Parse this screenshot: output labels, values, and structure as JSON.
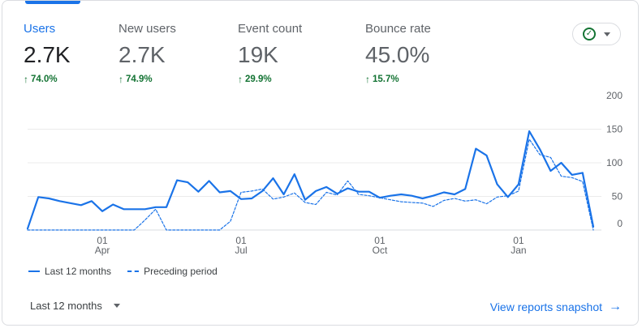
{
  "metrics": [
    {
      "label": "Users",
      "value": "2.7K",
      "delta": "74.0%",
      "active": true
    },
    {
      "label": "New users",
      "value": "2.7K",
      "delta": "74.9%",
      "active": false
    },
    {
      "label": "Event count",
      "value": "19K",
      "delta": "29.9%",
      "active": false
    },
    {
      "label": "Bounce rate",
      "value": "45.0%",
      "delta": "15.7%",
      "active": false
    }
  ],
  "status_button": {
    "icon": "check-circle-icon",
    "menu_icon": "caret-down-icon"
  },
  "legend": {
    "current": "Last 12 months",
    "previous": "Preceding period"
  },
  "footer": {
    "range_label": "Last 12 months",
    "link_label": "View reports snapshot"
  },
  "colors": {
    "accent": "#1a73e8",
    "positive": "#137333"
  },
  "chart_data": {
    "type": "line",
    "y_ticks": [
      "200",
      "150",
      "100",
      "50",
      "0"
    ],
    "ylim": [
      0,
      200
    ],
    "x_tick_labels": [
      {
        "day": "01",
        "month": "Apr"
      },
      {
        "day": "01",
        "month": "Jul"
      },
      {
        "day": "01",
        "month": "Oct"
      },
      {
        "day": "01",
        "month": "Jan"
      }
    ],
    "x_tick_index": [
      7,
      20,
      33,
      46
    ],
    "series": [
      {
        "name": "Last 12 months",
        "style": "solid",
        "values": [
          2,
          49,
          47,
          43,
          40,
          37,
          43,
          28,
          38,
          31,
          31,
          31,
          34,
          34,
          74,
          71,
          57,
          73,
          56,
          58,
          46,
          47,
          58,
          77,
          53,
          83,
          45,
          58,
          64,
          54,
          62,
          57,
          57,
          48,
          51,
          53,
          51,
          47,
          51,
          56,
          53,
          61,
          121,
          111,
          68,
          49,
          68,
          147,
          120,
          88,
          100,
          82,
          85,
          5
        ]
      },
      {
        "name": "Preceding period",
        "style": "dashed",
        "values": [
          0,
          0,
          0,
          0,
          0,
          0,
          0,
          0,
          0,
          0,
          0,
          15,
          31,
          0,
          0,
          0,
          0,
          0,
          0,
          13,
          56,
          58,
          61,
          46,
          49,
          55,
          41,
          38,
          56,
          52,
          73,
          53,
          51,
          48,
          45,
          42,
          41,
          40,
          35,
          44,
          47,
          43,
          45,
          39,
          49,
          51,
          58,
          135,
          112,
          108,
          80,
          78,
          72,
          0
        ]
      }
    ]
  }
}
